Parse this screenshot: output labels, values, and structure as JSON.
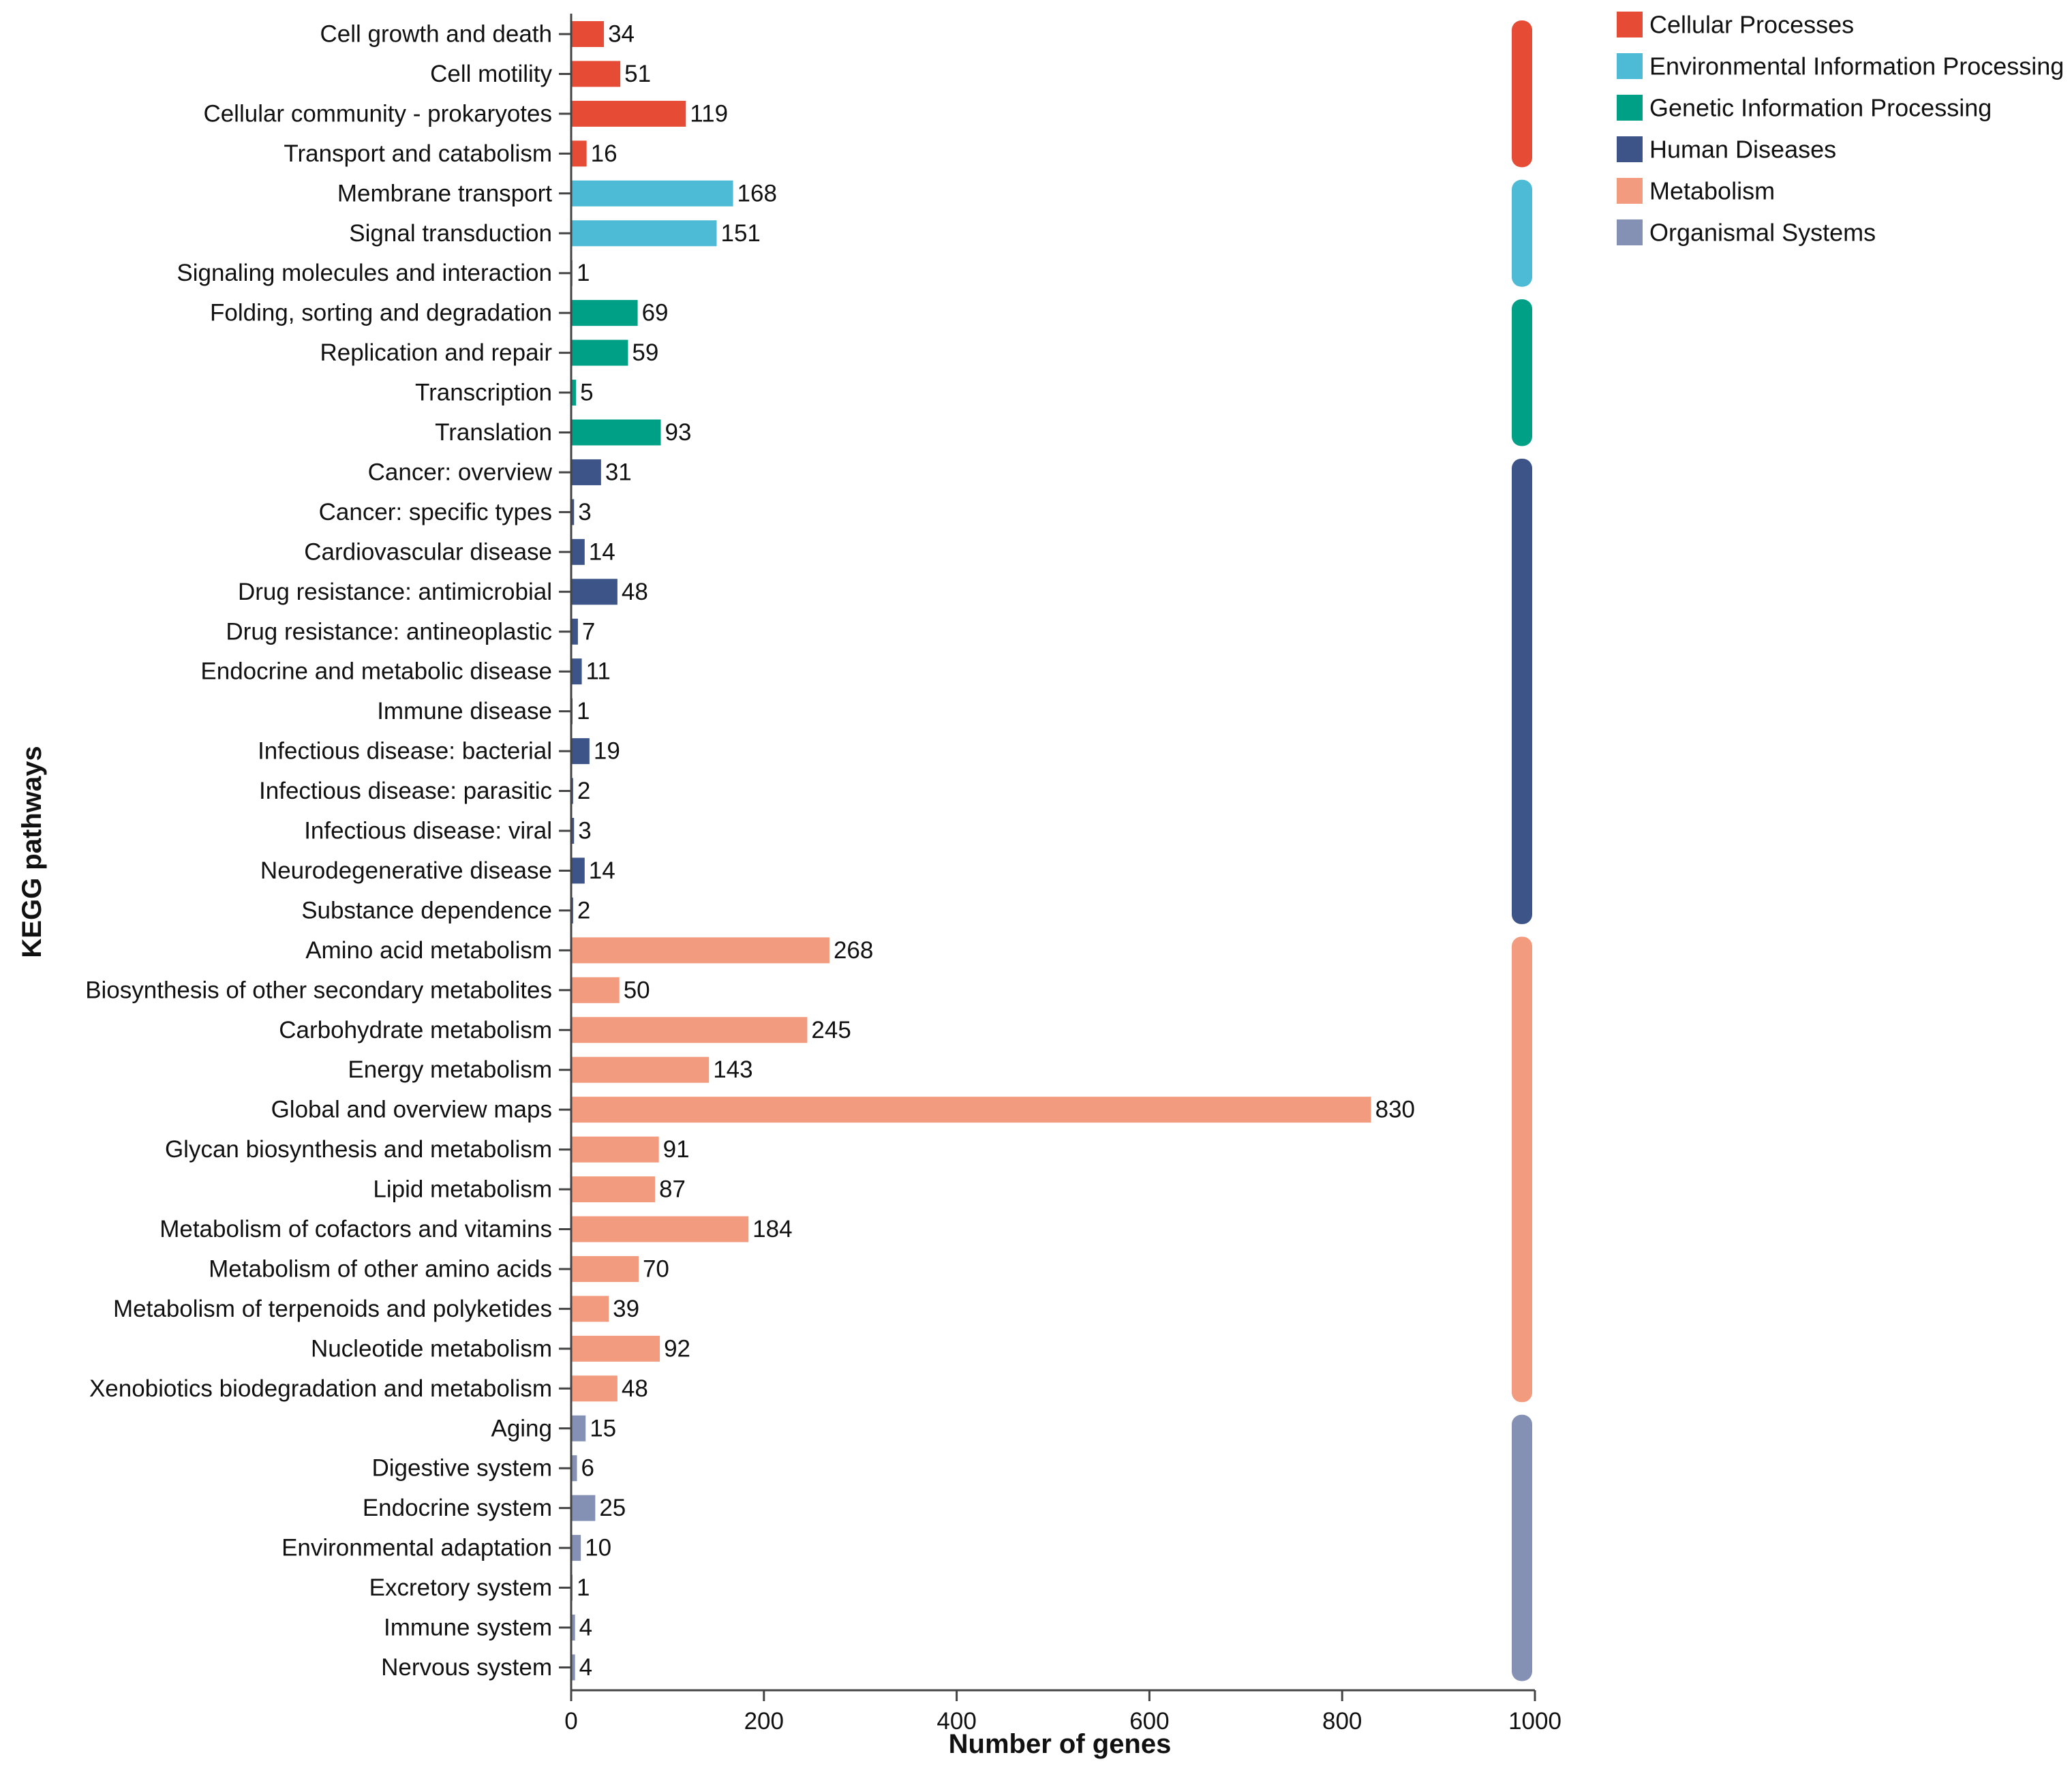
{
  "chart_data": {
    "type": "bar",
    "orientation": "horizontal",
    "xlabel": "Number of genes",
    "ylabel": "KEGG pathways",
    "xlim": [
      0,
      1000
    ],
    "xticks": [
      0,
      200,
      400,
      600,
      800,
      1000
    ],
    "legend_position": "top-right",
    "groups": [
      {
        "name": "Cellular Processes",
        "color": "#E64B35",
        "items": [
          {
            "label": "Cell growth and death",
            "value": 34
          },
          {
            "label": "Cell motility",
            "value": 51
          },
          {
            "label": "Cellular community - prokaryotes",
            "value": 119
          },
          {
            "label": "Transport and catabolism",
            "value": 16
          }
        ]
      },
      {
        "name": "Environmental Information Processing",
        "color": "#4DBBD5",
        "items": [
          {
            "label": "Membrane transport",
            "value": 168
          },
          {
            "label": "Signal transduction",
            "value": 151
          },
          {
            "label": "Signaling molecules and interaction",
            "value": 1
          }
        ]
      },
      {
        "name": "Genetic Information Processing",
        "color": "#00A087",
        "items": [
          {
            "label": "Folding, sorting and degradation",
            "value": 69
          },
          {
            "label": "Replication and repair",
            "value": 59
          },
          {
            "label": "Transcription",
            "value": 5
          },
          {
            "label": "Translation",
            "value": 93
          }
        ]
      },
      {
        "name": "Human Diseases",
        "color": "#3C5488",
        "items": [
          {
            "label": "Cancer: overview",
            "value": 31
          },
          {
            "label": "Cancer: specific types",
            "value": 3
          },
          {
            "label": "Cardiovascular disease",
            "value": 14
          },
          {
            "label": "Drug resistance: antimicrobial",
            "value": 48
          },
          {
            "label": "Drug resistance: antineoplastic",
            "value": 7
          },
          {
            "label": "Endocrine and metabolic disease",
            "value": 11
          },
          {
            "label": "Immune disease",
            "value": 1
          },
          {
            "label": "Infectious disease: bacterial",
            "value": 19
          },
          {
            "label": "Infectious disease: parasitic",
            "value": 2
          },
          {
            "label": "Infectious disease: viral",
            "value": 3
          },
          {
            "label": "Neurodegenerative disease",
            "value": 14
          },
          {
            "label": "Substance dependence",
            "value": 2
          }
        ]
      },
      {
        "name": "Metabolism",
        "color": "#F39B7F",
        "items": [
          {
            "label": "Amino acid metabolism",
            "value": 268
          },
          {
            "label": "Biosynthesis of other secondary metabolites",
            "value": 50
          },
          {
            "label": "Carbohydrate metabolism",
            "value": 245
          },
          {
            "label": "Energy metabolism",
            "value": 143
          },
          {
            "label": "Global and overview maps",
            "value": 830
          },
          {
            "label": "Glycan biosynthesis and metabolism",
            "value": 91
          },
          {
            "label": "Lipid metabolism",
            "value": 87
          },
          {
            "label": "Metabolism of cofactors and vitamins",
            "value": 184
          },
          {
            "label": "Metabolism of other amino acids",
            "value": 70
          },
          {
            "label": "Metabolism of terpenoids and polyketides",
            "value": 39
          },
          {
            "label": "Nucleotide metabolism",
            "value": 92
          },
          {
            "label": "Xenobiotics biodegradation and metabolism",
            "value": 48
          }
        ]
      },
      {
        "name": "Organismal Systems",
        "color": "#8491B4",
        "items": [
          {
            "label": "Aging",
            "value": 15
          },
          {
            "label": "Digestive system",
            "value": 6
          },
          {
            "label": "Endocrine system",
            "value": 25
          },
          {
            "label": "Environmental adaptation",
            "value": 10
          },
          {
            "label": "Excretory system",
            "value": 1
          },
          {
            "label": "Immune system",
            "value": 4
          },
          {
            "label": "Nervous system",
            "value": 4
          }
        ]
      }
    ]
  }
}
